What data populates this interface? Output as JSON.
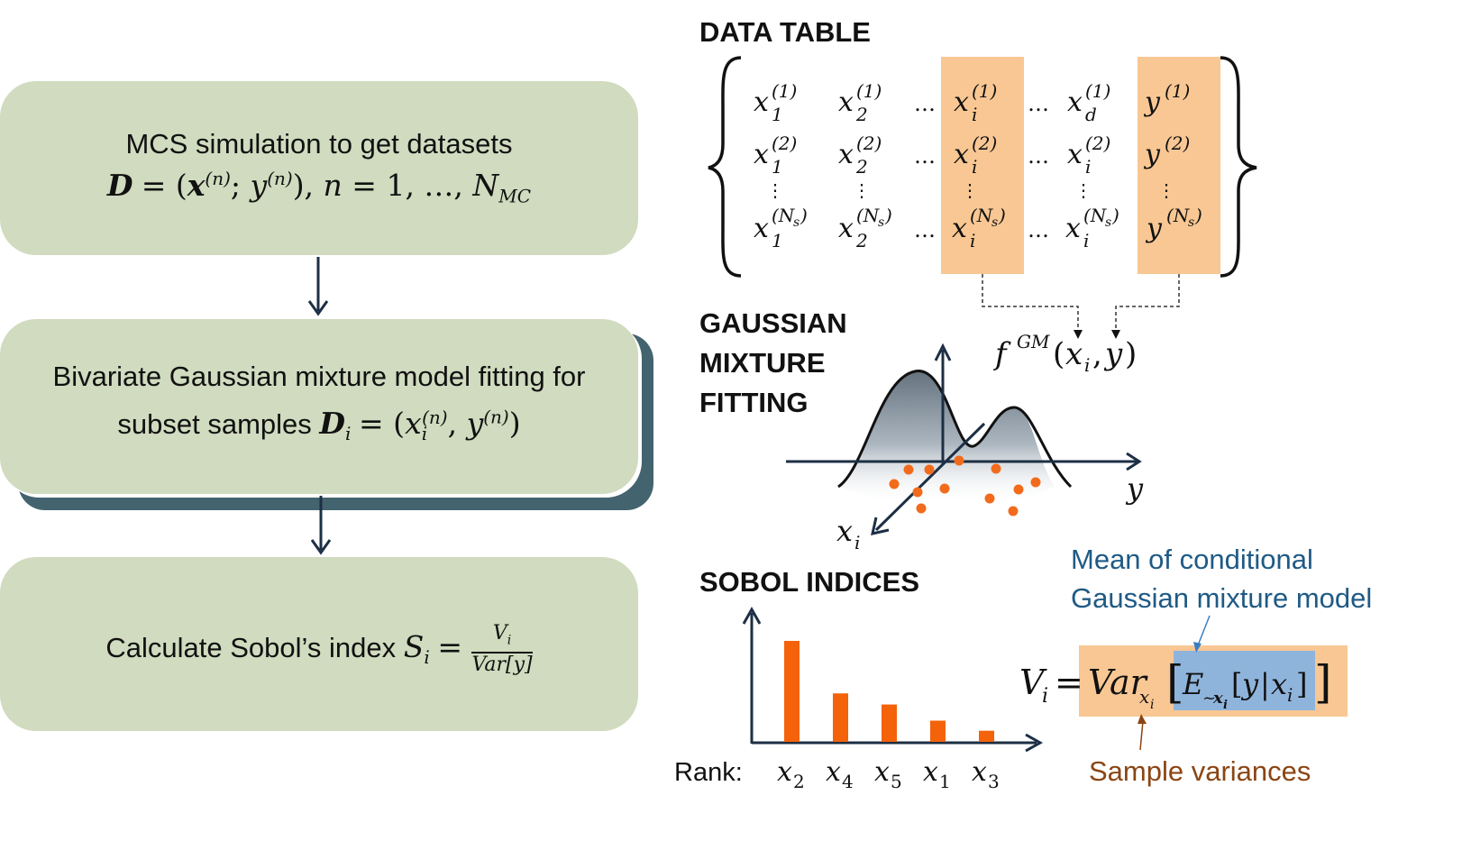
{
  "flow": {
    "box1": {
      "line1": "MCS simulation to get datasets"
    },
    "box2": {
      "line1": "Bivariate Gaussian mixture model fitting for",
      "line2_prefix": "subset samples"
    },
    "box3": {
      "prefix": "Calculate Sobol’s index"
    }
  },
  "sections": {
    "data_table": "DATA TABLE",
    "gmm": [
      "GAUSSIAN",
      "MIXTURE",
      "FITTING"
    ],
    "sobol": "SOBOL INDICES"
  },
  "gmm_labels": {
    "x_axis": "y",
    "depth_axis": "x",
    "depth_sub": "i"
  },
  "sobol_chart": {
    "rank_label": "Rank:",
    "bars": [
      {
        "label": "x",
        "sub": "2",
        "value": 1.0
      },
      {
        "label": "x",
        "sub": "4",
        "value": 0.48
      },
      {
        "label": "x",
        "sub": "5",
        "value": 0.37
      },
      {
        "label": "x",
        "sub": "1",
        "value": 0.21
      },
      {
        "label": "x",
        "sub": "3",
        "value": 0.11
      }
    ],
    "bar_color": "#f4620a"
  },
  "annotations": {
    "mean_cond": [
      "Mean of conditional",
      "Gaussian mixture model"
    ],
    "sample_var": "Sample variances"
  },
  "colors": {
    "box_fill": "#d0dbbf",
    "box_shadow": "#43636f",
    "highlight_orange": "#f8c793",
    "highlight_blue": "#8fb4dc",
    "dot_orange": "#f26b1d",
    "blue_text": "#1f5a85",
    "brown_text": "#8b4513"
  }
}
